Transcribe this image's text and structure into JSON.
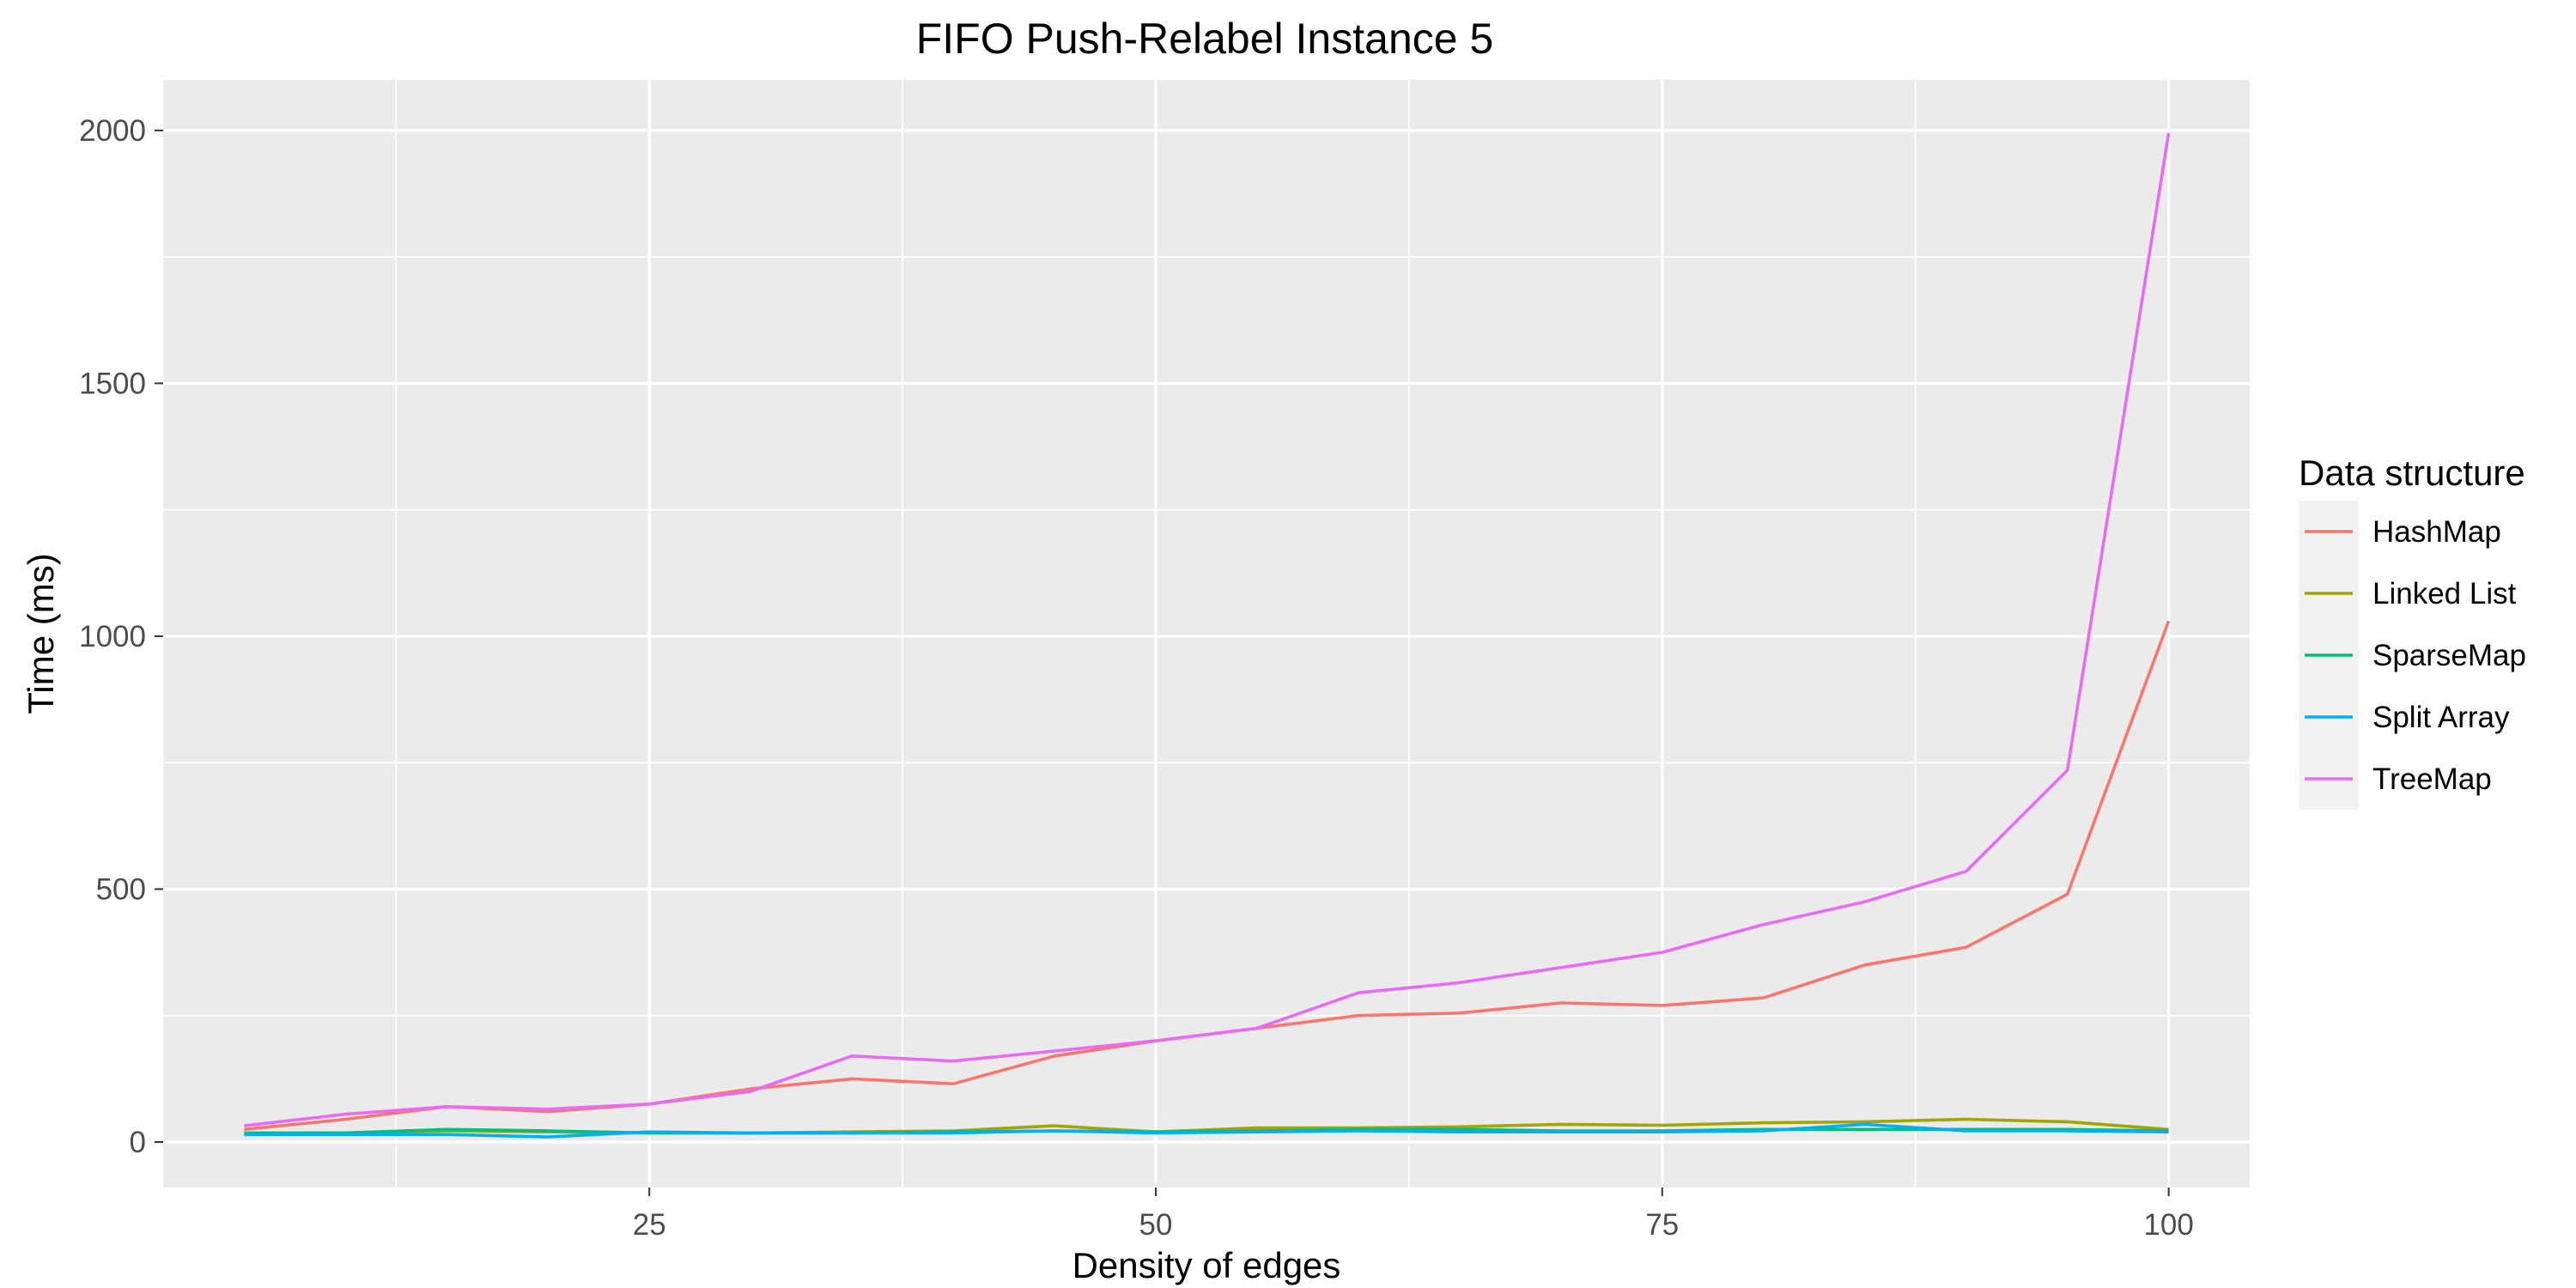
{
  "chart_data": {
    "type": "line",
    "title": "FIFO Push-Relabel Instance 5",
    "xlabel": "Density of edges",
    "ylabel": "Time (ms)",
    "xlim": [
      1,
      104
    ],
    "ylim": [
      -90,
      2100
    ],
    "x_ticks": [
      25,
      50,
      75,
      100
    ],
    "x_minor_ticks": [
      12.5,
      37.5,
      62.5,
      87.5
    ],
    "y_ticks": [
      0,
      500,
      1000,
      1500,
      2000
    ],
    "y_minor_ticks": [
      250,
      750,
      1250,
      1750
    ],
    "grid": true,
    "legend_title": "Data structure",
    "legend_position": "right",
    "x": [
      5,
      10,
      15,
      20,
      25,
      30,
      35,
      40,
      45,
      50,
      55,
      60,
      65,
      70,
      75,
      80,
      85,
      90,
      95,
      100
    ],
    "series": [
      {
        "name": "HashMap",
        "color": "#F8766D",
        "values": [
          25,
          45,
          70,
          60,
          75,
          105,
          125,
          115,
          170,
          200,
          225,
          250,
          255,
          275,
          270,
          285,
          350,
          385,
          490,
          1030
        ]
      },
      {
        "name": "Linked List",
        "color": "#A3A500",
        "values": [
          15,
          18,
          22,
          20,
          18,
          18,
          20,
          22,
          32,
          20,
          28,
          28,
          30,
          35,
          33,
          38,
          40,
          45,
          40,
          25
        ]
      },
      {
        "name": "SparseMap",
        "color": "#00BF7D",
        "values": [
          18,
          18,
          25,
          22,
          18,
          18,
          18,
          20,
          22,
          20,
          22,
          25,
          25,
          22,
          22,
          25,
          25,
          25,
          25,
          22
        ]
      },
      {
        "name": "Split Array",
        "color": "#00B0F6",
        "values": [
          15,
          15,
          15,
          10,
          20,
          18,
          18,
          18,
          22,
          18,
          20,
          22,
          20,
          20,
          20,
          22,
          35,
          22,
          22,
          20
        ]
      },
      {
        "name": "TreeMap",
        "color": "#E76BF3",
        "values": [
          32,
          55,
          70,
          65,
          75,
          100,
          170,
          160,
          180,
          200,
          225,
          295,
          315,
          345,
          375,
          430,
          475,
          535,
          735,
          1995
        ]
      }
    ]
  }
}
